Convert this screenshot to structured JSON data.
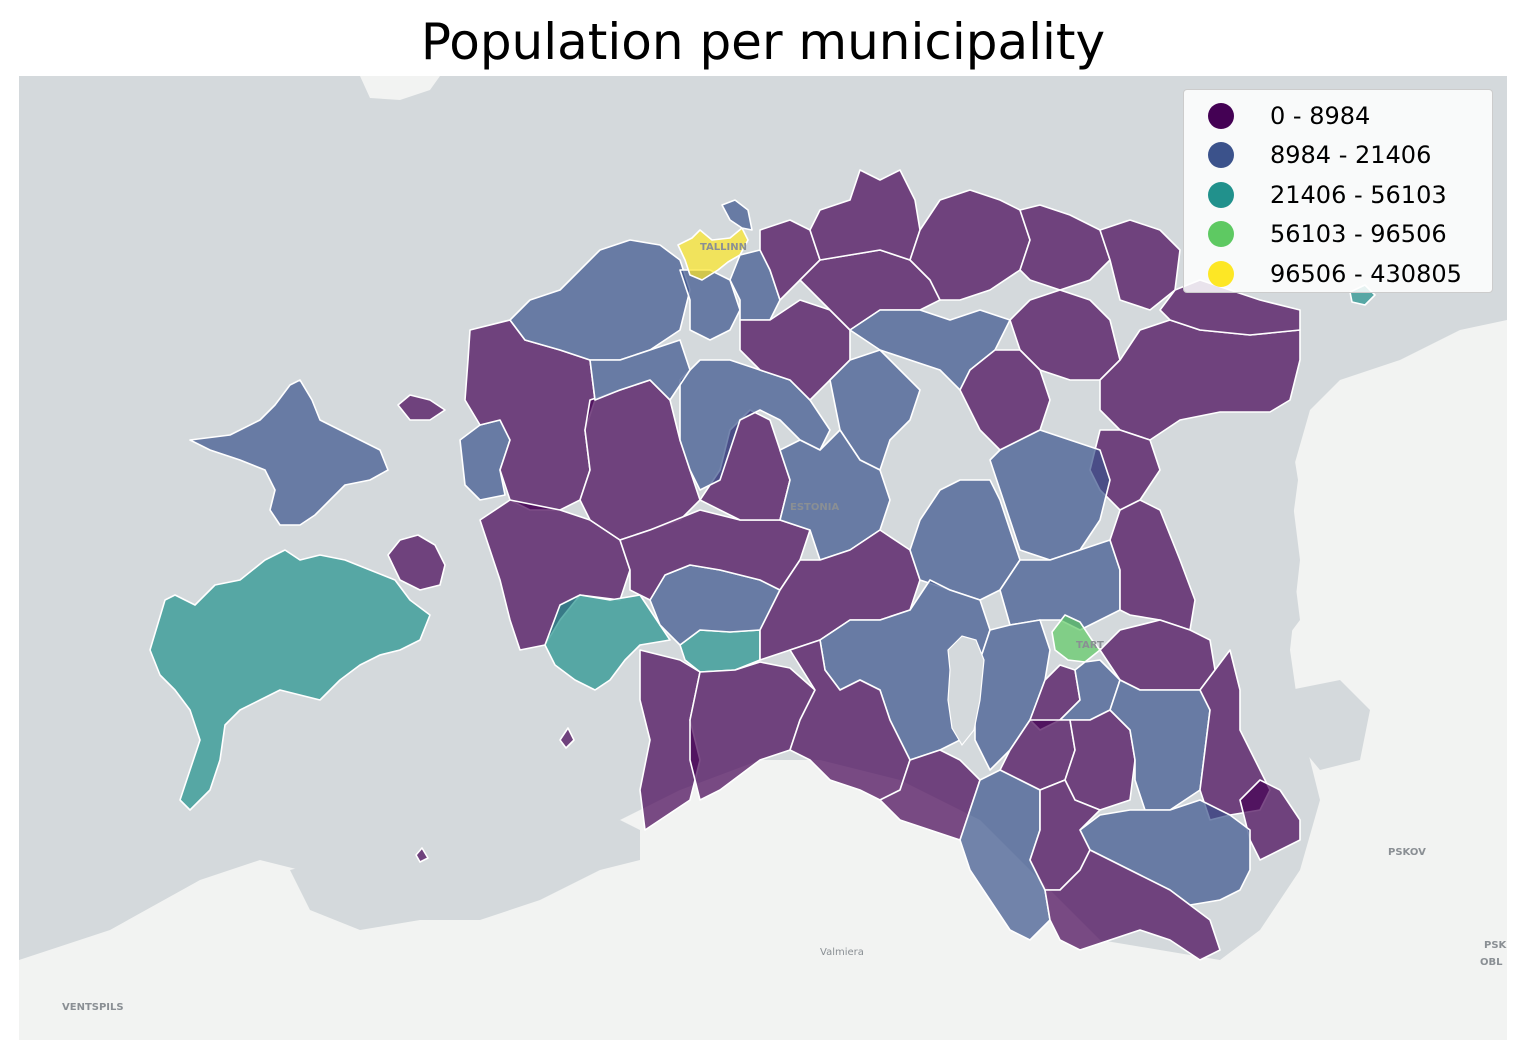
{
  "title": "Population per municipality",
  "legend": {
    "items": [
      {
        "label": "0 - 8984",
        "color": "#440154"
      },
      {
        "label": "8984 - 21406",
        "color": "#3b528b"
      },
      {
        "label": "21406 - 56103",
        "color": "#21918c"
      },
      {
        "label": "56103 - 96506",
        "color": "#5ec962"
      },
      {
        "label": "96506 - 430805",
        "color": "#fde725"
      }
    ]
  },
  "basemap": {
    "water_color": "#d4d9dc",
    "land_color": "#f2f3f2",
    "labels": {
      "estonia": "ESTONIA",
      "tallinn": "TALLINN",
      "tartu": "TART",
      "pskov": "PSKOV",
      "valmiera": "Valmiera",
      "ventspils": "VENTSPILS",
      "psk1": "PSK",
      "psk2": "OBL"
    }
  },
  "map_style": {
    "region_opacity": 0.7,
    "border_color": "#ffffff"
  }
}
